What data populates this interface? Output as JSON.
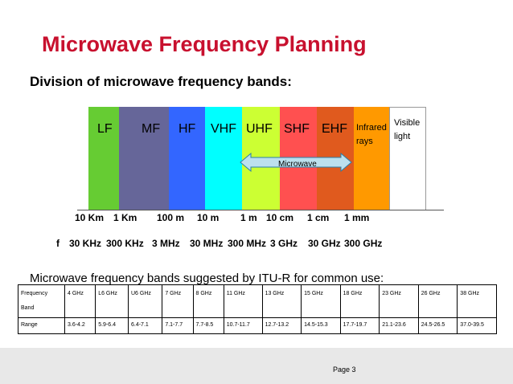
{
  "title": "Microwave Frequency Planning",
  "subtitle": "Division of microwave frequency bands:",
  "bands": [
    {
      "label": "LF",
      "color": "#66cc33"
    },
    {
      "label": "MF",
      "color": "#666699"
    },
    {
      "label": "HF",
      "color": "#3366ff"
    },
    {
      "label": "VHF",
      "color": "#00ffff"
    },
    {
      "label": "UHF",
      "color": "#ccff33"
    },
    {
      "label": "SHF",
      "color": "#ff5050"
    },
    {
      "label": "EHF",
      "color": "#e05a1e"
    },
    {
      "label": "Infrared rays",
      "color": "#ff9900"
    },
    {
      "label": "Visible light",
      "color": "#ffffff"
    }
  ],
  "microwave_label": "Microwave",
  "wavelength_symbol": "",
  "wavelengths": [
    "10 Km",
    "1 Km",
    "100 m",
    "10 m",
    "1 m",
    "10 cm",
    "1 cm",
    "1 mm"
  ],
  "frequency_symbol": "f",
  "frequencies": [
    "30 KHz",
    "300 KHz",
    "3 MHz",
    "30 MHz",
    "300 MHz",
    "3 GHz",
    "30 GHz",
    "300 GHz"
  ],
  "itu_text": "Microwave frequency bands suggested by ITU-R for common use:",
  "table": {
    "row1": [
      "Frequency Band",
      "4 GHz",
      "L6 GHz",
      "U6 GHz",
      "7 GHz",
      "8 GHz",
      "11 GHz",
      "13 GHz",
      "15 GHz",
      "18 GHz",
      "23 GHz",
      "26 GHz",
      "38 GHz"
    ],
    "row2": [
      "Range",
      "3.6-4.2",
      "5.9-6.4",
      "6.4-7.1",
      "7.1-7.7",
      "7.7-8.5",
      "10.7-11.7",
      "12.7-13.2",
      "14.5-15.3",
      "17.7-19.7",
      "21.1-23.6",
      "24.5-26.5",
      "37.0-39.5"
    ]
  },
  "page_label": "Page 3"
}
